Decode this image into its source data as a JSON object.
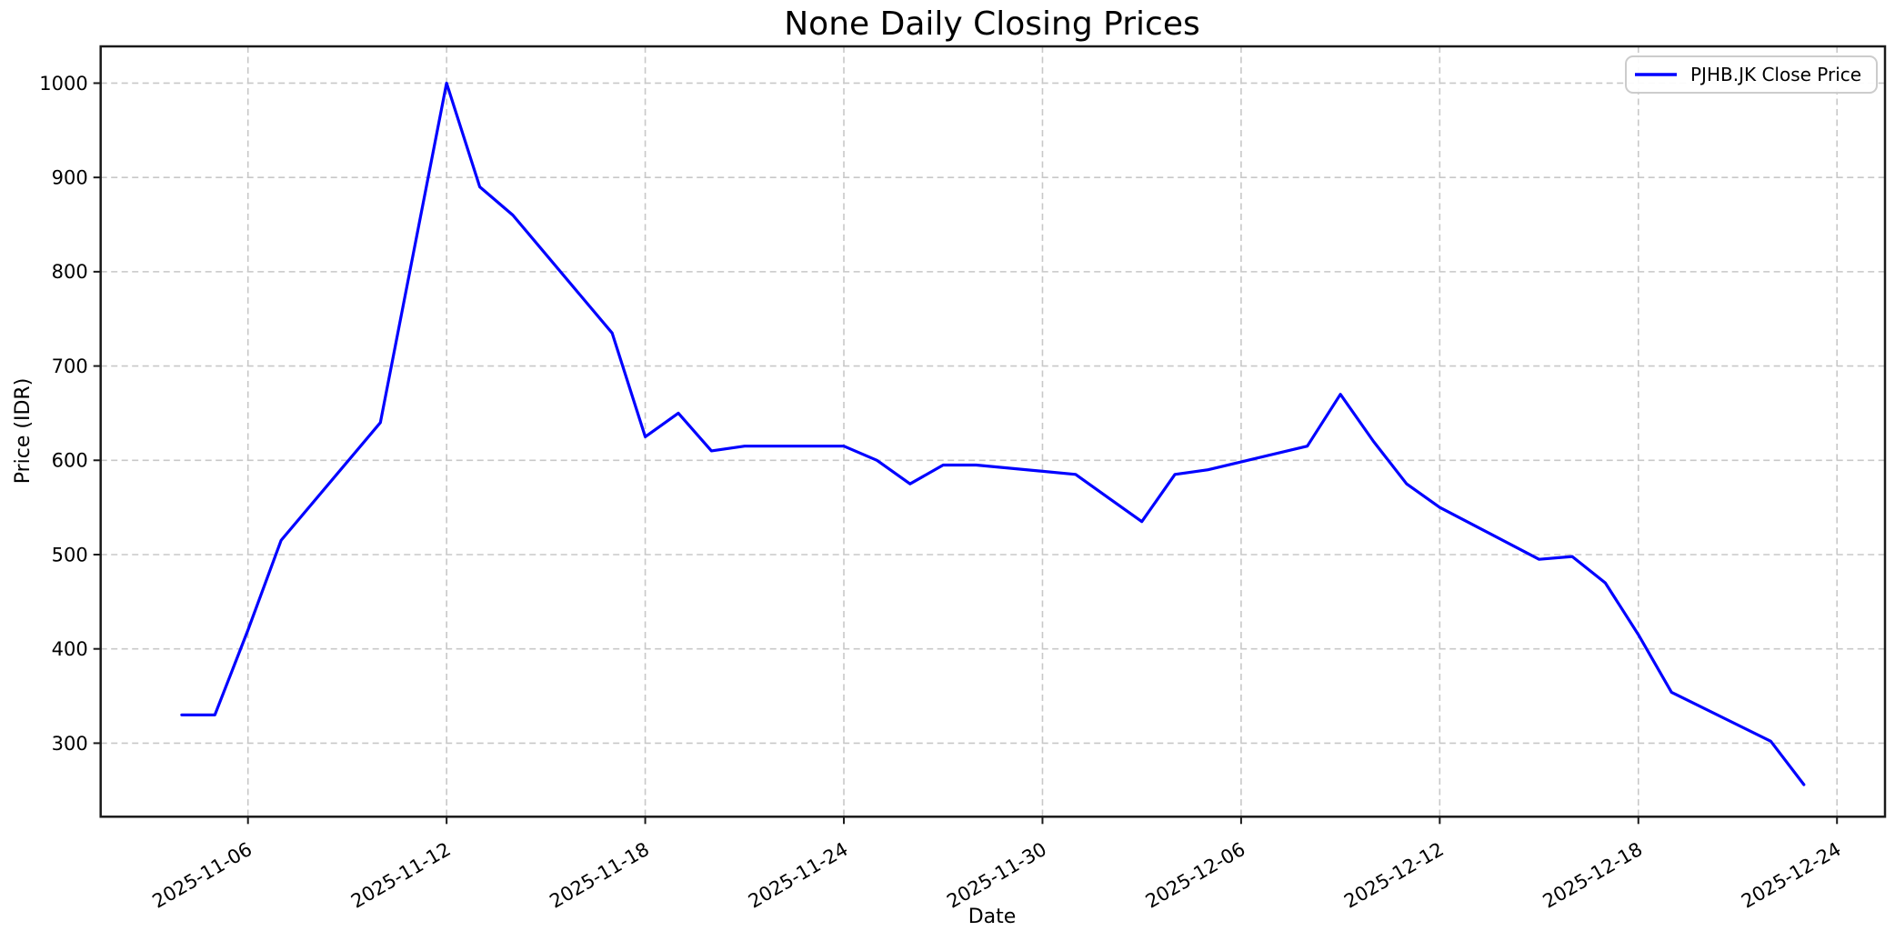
{
  "chart_data": {
    "type": "line",
    "title": "None Daily Closing Prices",
    "xlabel": "Date",
    "ylabel": "Price (IDR)",
    "grid": "dashed-both-axes",
    "legend_position": "upper-right",
    "colors": {
      "line": "#0000ff",
      "grid": "#c8c8c8",
      "spine": "#1a1a1a",
      "legend_border": "#cccccc",
      "background": "#ffffff"
    },
    "legend": [
      {
        "label": "PJHB.JK Close Price",
        "color": "#0000ff"
      }
    ],
    "x_tick_labels": [
      "2025-11-06",
      "2025-11-12",
      "2025-11-18",
      "2025-11-24",
      "2025-11-30",
      "2025-12-06",
      "2025-12-12",
      "2025-12-18",
      "2025-12-24"
    ],
    "y_ticks": [
      300,
      400,
      500,
      600,
      700,
      800,
      900,
      1000
    ],
    "x_axis": {
      "base_date": "2025-11-01",
      "lim_day_offsets": [
        0.55,
        54.45
      ]
    },
    "ylim": [
      222,
      1039
    ],
    "series": [
      {
        "name": "PJHB.JK Close Price",
        "color": "#0000ff",
        "dates": [
          "2025-11-04",
          "2025-11-05",
          "2025-11-06",
          "2025-11-07",
          "2025-11-10",
          "2025-11-11",
          "2025-11-12",
          "2025-11-13",
          "2025-11-14",
          "2025-11-17",
          "2025-11-18",
          "2025-11-19",
          "2025-11-20",
          "2025-11-21",
          "2025-11-24",
          "2025-11-25",
          "2025-11-26",
          "2025-11-27",
          "2025-11-28",
          "2025-12-01",
          "2025-12-02",
          "2025-12-03",
          "2025-12-04",
          "2025-12-05",
          "2025-12-08",
          "2025-12-09",
          "2025-12-10",
          "2025-12-11",
          "2025-12-12",
          "2025-12-15",
          "2025-12-16",
          "2025-12-17",
          "2025-12-18",
          "2025-12-19",
          "2025-12-22",
          "2025-12-23"
        ],
        "values": [
          330,
          330,
          420,
          515,
          640,
          820,
          1000,
          890,
          860,
          735,
          625,
          650,
          610,
          615,
          615,
          600,
          575,
          595,
          595,
          585,
          560,
          535,
          585,
          590,
          615,
          670,
          620,
          575,
          550,
          495,
          498,
          470,
          415,
          354,
          302,
          256
        ]
      }
    ]
  }
}
